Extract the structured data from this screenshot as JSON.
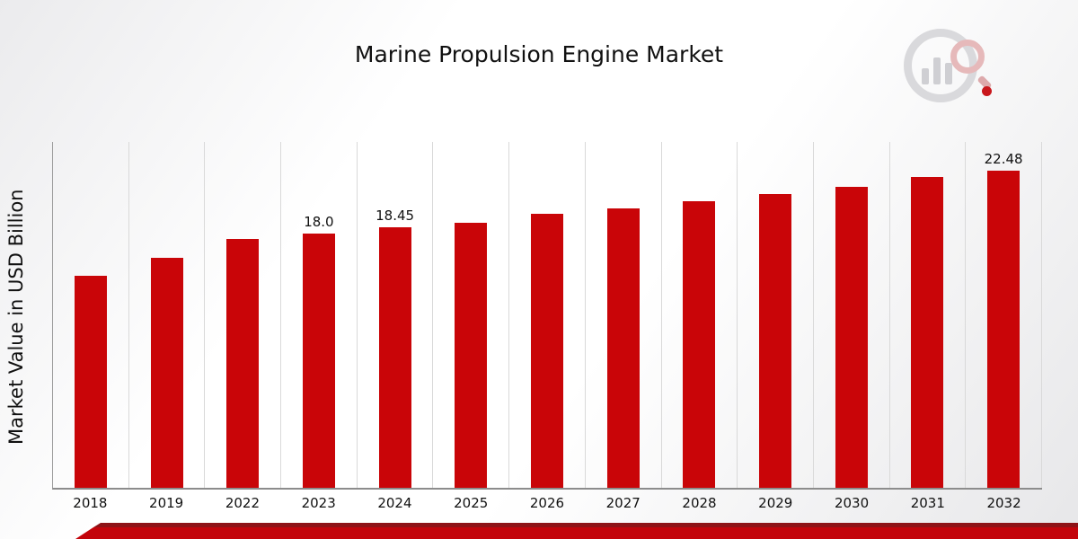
{
  "title": "Marine Propulsion Engine Market",
  "y_axis_label": "Market Value in USD Billion",
  "brand": {
    "bar_color": "#c90508",
    "footer_red": "#c3040b",
    "footer_dark_red": "#8e1317",
    "logo_icon": "bar-chart-magnifier-icon"
  },
  "chart_data": {
    "type": "bar",
    "title": "Marine Propulsion Engine Market",
    "xlabel": "",
    "ylabel": "Market Value in USD Billion",
    "categories": [
      "2018",
      "2019",
      "2022",
      "2023",
      "2024",
      "2025",
      "2026",
      "2027",
      "2028",
      "2029",
      "2030",
      "2031",
      "2032"
    ],
    "values": [
      15.0,
      16.3,
      17.6,
      18.0,
      18.45,
      18.8,
      19.4,
      19.8,
      20.3,
      20.8,
      21.3,
      22.0,
      22.48
    ],
    "data_labels": [
      "",
      "",
      "",
      "18.0",
      "18.45",
      "",
      "",
      "",
      "",
      "",
      "",
      "",
      "22.48"
    ],
    "ylim": [
      0,
      24.5
    ],
    "grid": "vertical",
    "legend": "none",
    "bar_color": "#c90508"
  }
}
